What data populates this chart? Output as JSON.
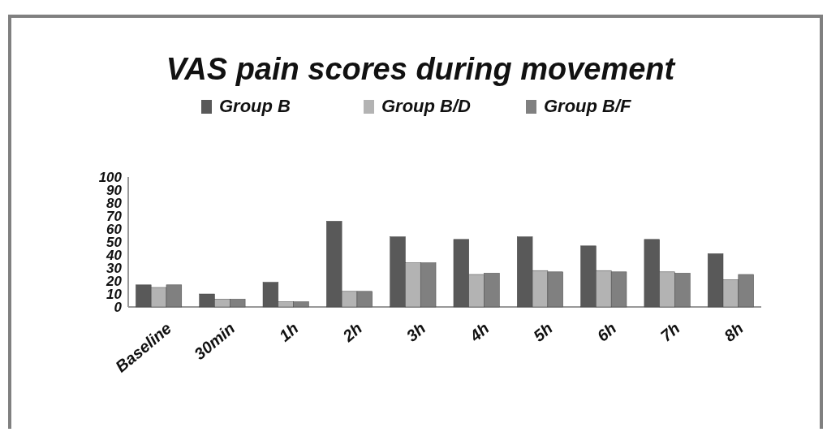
{
  "chart_data": {
    "type": "bar",
    "title": "VAS pain scores during movement",
    "categories": [
      "Baseline",
      "30min",
      "1h",
      "2h",
      "3h",
      "4h",
      "5h",
      "6h",
      "7h",
      "8h"
    ],
    "series": [
      {
        "name": "Group B",
        "color": "#595959",
        "values": [
          17,
          10,
          19,
          66,
          54,
          52,
          54,
          47,
          52,
          41
        ]
      },
      {
        "name": "Group B/D",
        "color": "#b3b3b3",
        "values": [
          15,
          6,
          4,
          12,
          34,
          25,
          28,
          28,
          27,
          21
        ]
      },
      {
        "name": "Group B/F",
        "color": "#808080",
        "values": [
          17,
          6,
          4,
          12,
          34,
          26,
          27,
          27,
          26,
          25
        ]
      }
    ],
    "ylim": [
      0,
      100
    ],
    "yticks": [
      0,
      10,
      20,
      30,
      40,
      50,
      60,
      70,
      80,
      90,
      100
    ],
    "grid": false,
    "legend": "top"
  }
}
